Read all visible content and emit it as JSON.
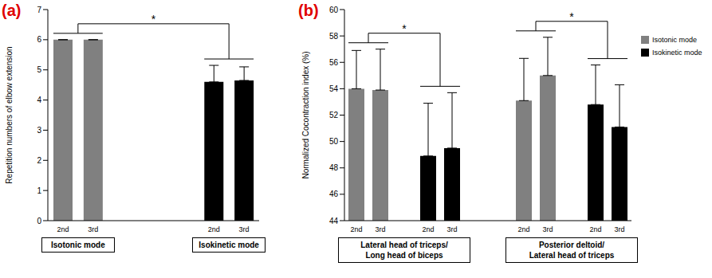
{
  "chart_data": [
    {
      "type": "bar",
      "title": "(a)",
      "y_label": "Repetition numbers of elbow extension",
      "categories": [
        "2nd",
        "3rd",
        null,
        null,
        null,
        "2nd",
        "3rd"
      ],
      "values": [
        6,
        6,
        null,
        null,
        null,
        4.6,
        4.65
      ],
      "errors": [
        0,
        0,
        null,
        null,
        null,
        0.55,
        0.45
      ],
      "colors": [
        "#808080",
        "#808080",
        null,
        null,
        null,
        "#000000",
        "#000000"
      ],
      "group_labels": [
        [
          "Isotonic mode"
        ],
        [
          "Isokinetic mode"
        ]
      ],
      "annotations": [
        "*"
      ],
      "ylim": [
        0,
        7
      ],
      "yticks": [
        0,
        1,
        2,
        3,
        4,
        5,
        6,
        7
      ]
    },
    {
      "type": "bar",
      "title": "(b)",
      "y_label": "Normalized Cocontraction index (%)",
      "categories": [
        "2nd",
        "3rd",
        null,
        "2nd",
        "3rd",
        null,
        null,
        "2nd",
        "3rd",
        null,
        "2nd",
        "3rd"
      ],
      "series": [
        {
          "name": "Isotonic mode",
          "color": "#808080",
          "values": [
            54,
            53.9,
            null,
            null,
            null,
            null,
            null,
            53.1,
            55,
            null,
            null,
            null
          ],
          "errors": [
            2.9,
            3.1,
            null,
            null,
            null,
            null,
            null,
            3.2,
            2.9,
            null,
            null,
            null
          ]
        },
        {
          "name": "Isokinetic mode",
          "color": "#000000",
          "values": [
            null,
            null,
            null,
            48.9,
            49.5,
            null,
            null,
            null,
            null,
            null,
            52.8,
            51.1
          ],
          "errors": [
            null,
            null,
            null,
            4.0,
            4.2,
            null,
            null,
            null,
            null,
            null,
            3.0,
            3.2
          ]
        }
      ],
      "group_labels": [
        [
          "Lateral head of triceps/",
          "Long head of biceps"
        ],
        [
          "Posterior deltoid/",
          "Lateral head of triceps"
        ]
      ],
      "annotations": [
        "*",
        "*"
      ],
      "legend": "right",
      "ylim": [
        44,
        60
      ],
      "yticks": [
        44,
        46,
        48,
        50,
        52,
        54,
        56,
        58,
        60
      ]
    }
  ]
}
